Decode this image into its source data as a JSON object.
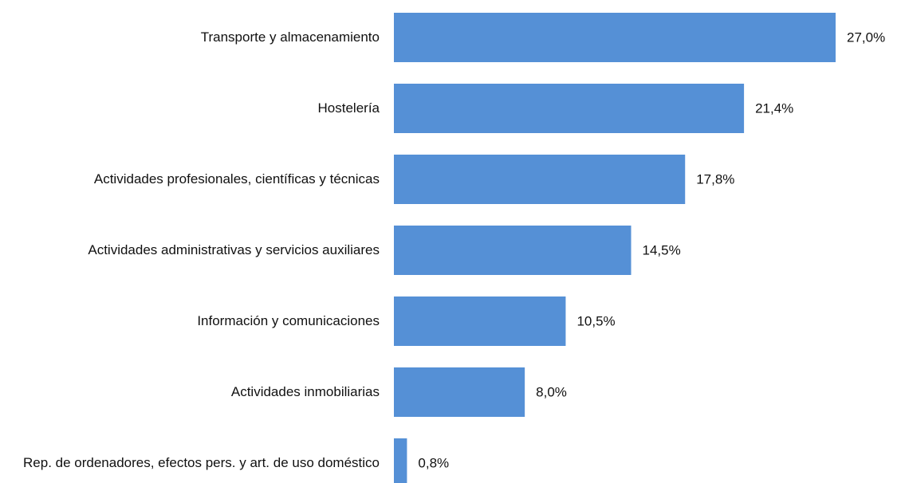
{
  "chart_data": {
    "type": "bar",
    "orientation": "horizontal",
    "categories": [
      "Transporte y almacenamiento",
      "Hostelería",
      "Actividades profesionales, científicas y técnicas",
      "Actividades administrativas y servicios auxiliares",
      "Información y comunicaciones",
      "Actividades inmobiliarias",
      "Rep. de ordenadores, efectos pers. y art. de uso doméstico"
    ],
    "values": [
      27.0,
      21.4,
      17.8,
      14.5,
      10.5,
      8.0,
      0.8
    ],
    "value_labels": [
      "27,0%",
      "21,4%",
      "17,8%",
      "14,5%",
      "10,5%",
      "8,0%",
      "0,8%"
    ],
    "color": "#5590d6"
  }
}
